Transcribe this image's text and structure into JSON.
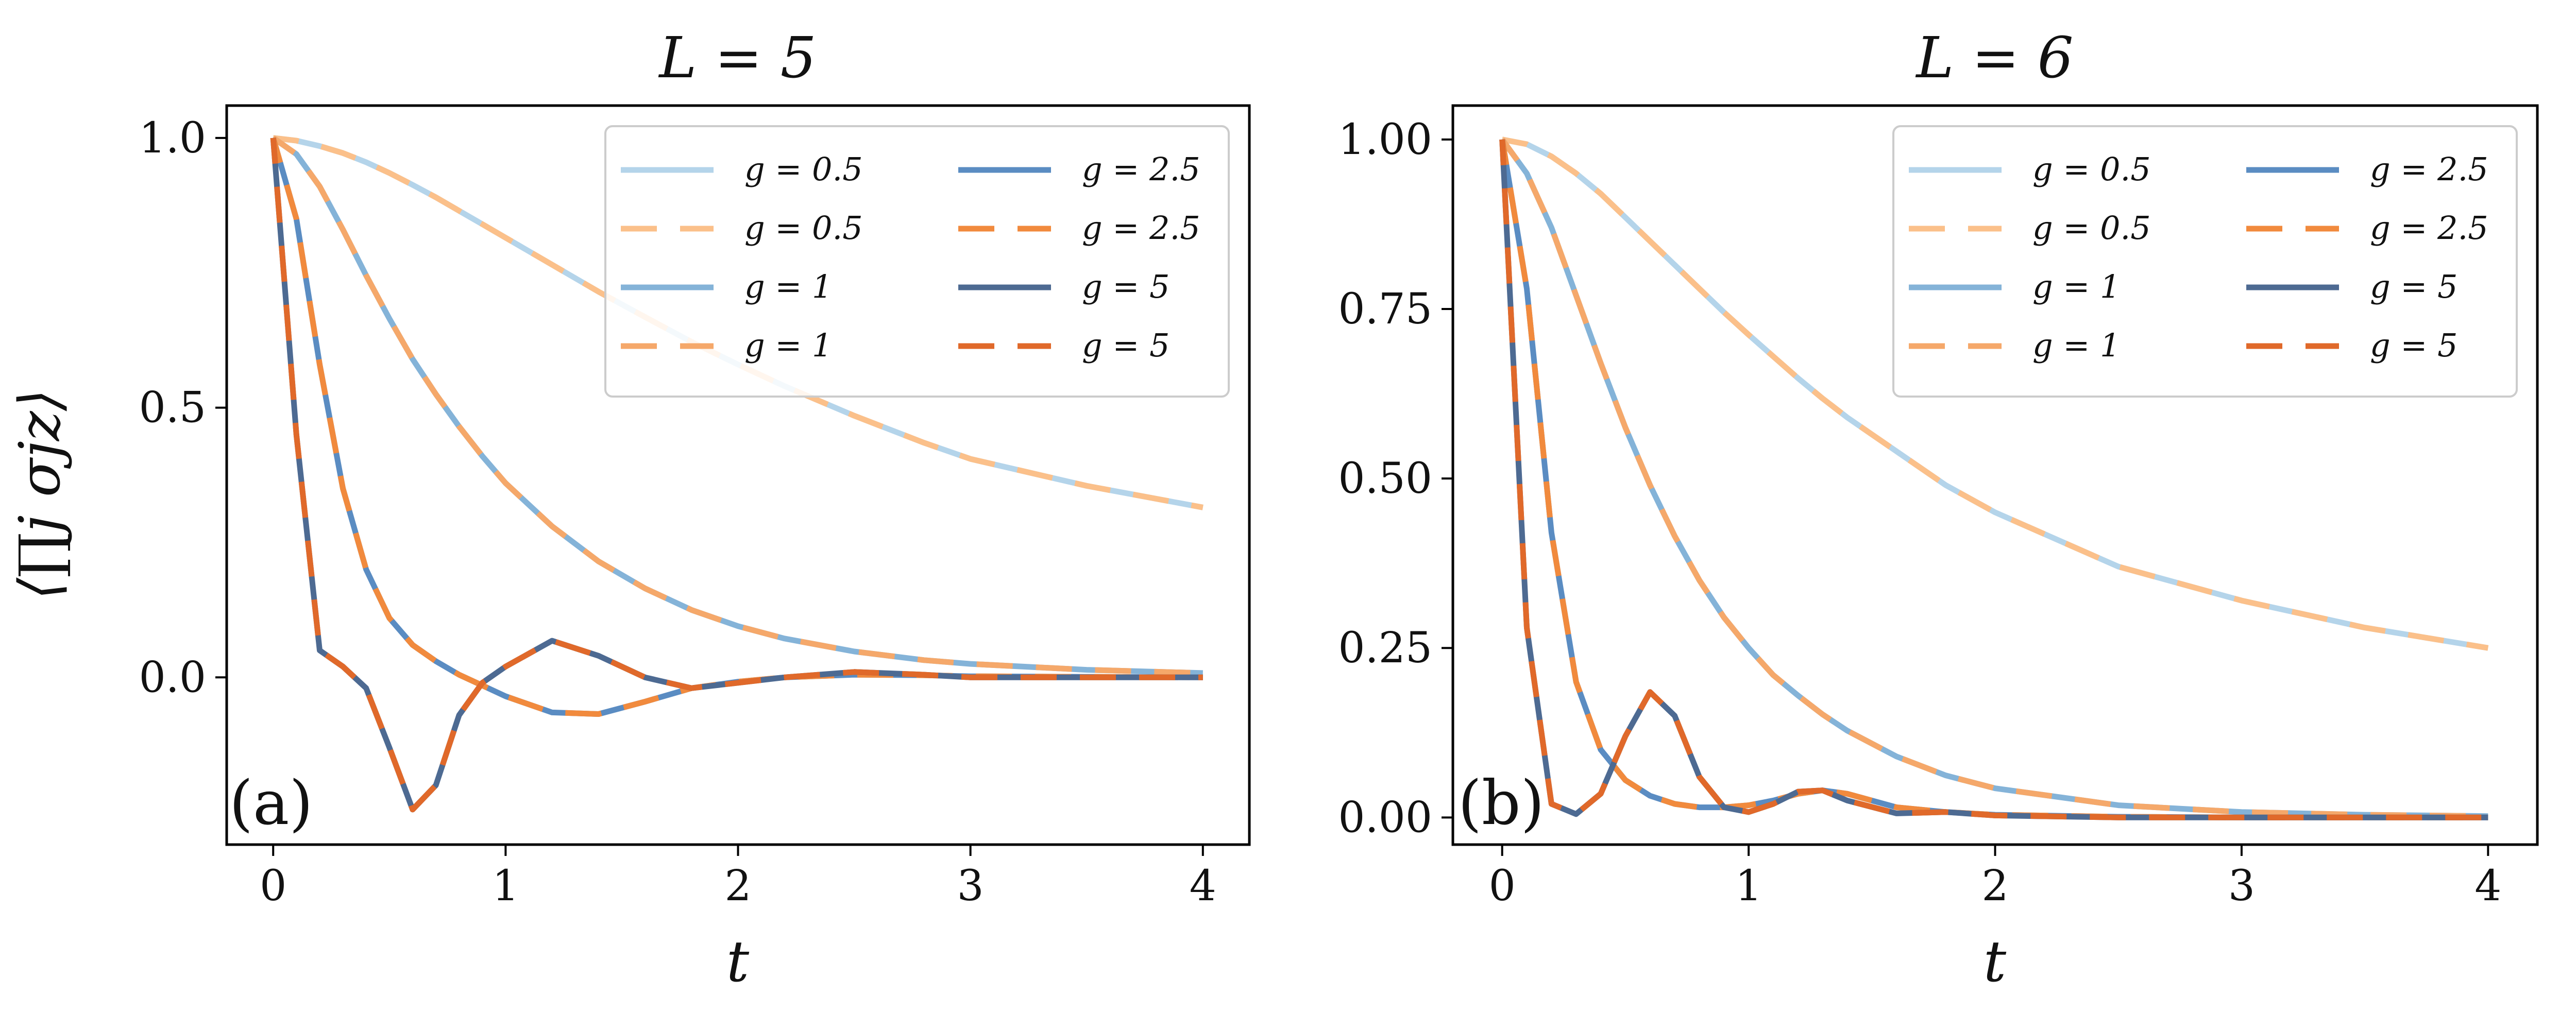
{
  "figure": {
    "ylabel": "⟨∏j σjz⟩",
    "xlabel": "t"
  },
  "colors": {
    "blue_0.5": "#b4d4ea",
    "blue_1": "#84b3d8",
    "blue_2.5": "#5a8cc2",
    "blue_5": "#4d6a92",
    "orange_0.5": "#fbc08a",
    "orange_1": "#f5a86a",
    "orange_2.5": "#f18a3d",
    "orange_5": "#e0692a"
  },
  "chart_data": [
    {
      "type": "line",
      "panel": "(a)",
      "title": "L = 5",
      "xlabel": "t",
      "ylabel": "⟨∏j σjz⟩",
      "xlim": [
        -0.2,
        4.2
      ],
      "ylim": [
        -0.31,
        1.06
      ],
      "xticks": [
        0,
        1,
        2,
        3,
        4
      ],
      "xtick_labels": [
        "0",
        "1",
        "2",
        "3",
        "4"
      ],
      "yticks": [
        0.0,
        0.5,
        1.0
      ],
      "ytick_labels": [
        "0.0",
        "0.5",
        "1.0"
      ],
      "legend": {
        "placement": "top-right",
        "columns": 2,
        "entries": [
          "g = 0.5",
          "g = 0.5",
          "g = 1",
          "g = 1",
          "g = 2.5",
          "g = 2.5",
          "g = 5",
          "g = 5"
        ]
      },
      "x": [
        0,
        0.1,
        0.2,
        0.3,
        0.4,
        0.5,
        0.6,
        0.7,
        0.8,
        0.9,
        1.0,
        1.2,
        1.4,
        1.6,
        1.8,
        2.0,
        2.2,
        2.5,
        2.8,
        3.0,
        3.5,
        4.0
      ],
      "series": [
        {
          "name": "g = 0.5",
          "style": "solid",
          "color": "blue_0.5",
          "values": [
            1.0,
            0.995,
            0.985,
            0.972,
            0.955,
            0.935,
            0.913,
            0.89,
            0.865,
            0.84,
            0.815,
            0.765,
            0.715,
            0.668,
            0.622,
            0.58,
            0.54,
            0.485,
            0.435,
            0.405,
            0.355,
            0.315
          ]
        },
        {
          "name": "g = 0.5",
          "style": "dashed",
          "color": "orange_0.5",
          "values": [
            1.0,
            0.995,
            0.985,
            0.972,
            0.955,
            0.935,
            0.913,
            0.89,
            0.865,
            0.84,
            0.815,
            0.765,
            0.715,
            0.668,
            0.622,
            0.58,
            0.54,
            0.485,
            0.435,
            0.405,
            0.355,
            0.315
          ]
        },
        {
          "name": "g = 1",
          "style": "solid",
          "color": "blue_1",
          "values": [
            1.0,
            0.97,
            0.91,
            0.83,
            0.745,
            0.665,
            0.59,
            0.525,
            0.465,
            0.41,
            0.36,
            0.28,
            0.215,
            0.165,
            0.125,
            0.095,
            0.072,
            0.048,
            0.032,
            0.025,
            0.014,
            0.008
          ]
        },
        {
          "name": "g = 1",
          "style": "dashed",
          "color": "orange_1",
          "values": [
            1.0,
            0.97,
            0.91,
            0.83,
            0.745,
            0.665,
            0.59,
            0.525,
            0.465,
            0.41,
            0.36,
            0.28,
            0.215,
            0.165,
            0.125,
            0.095,
            0.072,
            0.048,
            0.032,
            0.025,
            0.014,
            0.008
          ]
        },
        {
          "name": "g = 2.5",
          "style": "solid",
          "color": "blue_2.5",
          "values": [
            1.0,
            0.85,
            0.58,
            0.35,
            0.2,
            0.11,
            0.06,
            0.03,
            0.005,
            -0.015,
            -0.035,
            -0.065,
            -0.068,
            -0.045,
            -0.02,
            -0.008,
            0.0,
            0.005,
            0.004,
            0.002,
            0.001,
            0.0
          ]
        },
        {
          "name": "g = 2.5",
          "style": "dashed",
          "color": "orange_2.5",
          "values": [
            1.0,
            0.85,
            0.58,
            0.35,
            0.2,
            0.11,
            0.06,
            0.03,
            0.005,
            -0.015,
            -0.035,
            -0.065,
            -0.068,
            -0.045,
            -0.02,
            -0.008,
            0.0,
            0.005,
            0.004,
            0.002,
            0.001,
            0.0
          ]
        },
        {
          "name": "g = 5",
          "style": "solid",
          "color": "blue_5",
          "values": [
            1.0,
            0.45,
            0.05,
            0.02,
            -0.02,
            -0.13,
            -0.245,
            -0.2,
            -0.07,
            -0.01,
            0.02,
            0.068,
            0.04,
            0.0,
            -0.02,
            -0.01,
            0.0,
            0.01,
            0.005,
            0.0,
            0.0,
            0.0
          ]
        },
        {
          "name": "g = 5",
          "style": "dashed",
          "color": "orange_5",
          "values": [
            1.0,
            0.45,
            0.05,
            0.02,
            -0.02,
            -0.13,
            -0.245,
            -0.2,
            -0.07,
            -0.01,
            0.02,
            0.068,
            0.04,
            0.0,
            -0.02,
            -0.01,
            0.0,
            0.01,
            0.005,
            0.0,
            0.0,
            0.0
          ]
        }
      ]
    },
    {
      "type": "line",
      "panel": "(b)",
      "title": "L = 6",
      "xlabel": "t",
      "ylabel": "",
      "xlim": [
        -0.2,
        4.2
      ],
      "ylim": [
        -0.04,
        1.05
      ],
      "xticks": [
        0,
        1,
        2,
        3,
        4
      ],
      "xtick_labels": [
        "0",
        "1",
        "2",
        "3",
        "4"
      ],
      "yticks": [
        0.0,
        0.25,
        0.5,
        0.75,
        1.0
      ],
      "ytick_labels": [
        "0.00",
        "0.25",
        "0.50",
        "0.75",
        "1.00"
      ],
      "legend": {
        "placement": "top-right",
        "columns": 2,
        "entries": [
          "g = 0.5",
          "g = 0.5",
          "g = 1",
          "g = 1",
          "g = 2.5",
          "g = 2.5",
          "g = 5",
          "g = 5"
        ]
      },
      "x": [
        0,
        0.1,
        0.2,
        0.3,
        0.4,
        0.5,
        0.6,
        0.7,
        0.8,
        0.9,
        1.0,
        1.1,
        1.2,
        1.3,
        1.4,
        1.6,
        1.8,
        2.0,
        2.5,
        3.0,
        3.5,
        4.0
      ],
      "series": [
        {
          "name": "g = 0.5",
          "style": "solid",
          "color": "blue_0.5",
          "values": [
            1.0,
            0.993,
            0.975,
            0.95,
            0.92,
            0.885,
            0.85,
            0.815,
            0.78,
            0.745,
            0.712,
            0.68,
            0.648,
            0.618,
            0.59,
            0.54,
            0.49,
            0.45,
            0.37,
            0.32,
            0.28,
            0.25
          ]
        },
        {
          "name": "g = 0.5",
          "style": "dashed",
          "color": "orange_0.5",
          "values": [
            1.0,
            0.993,
            0.975,
            0.95,
            0.92,
            0.885,
            0.85,
            0.815,
            0.78,
            0.745,
            0.712,
            0.68,
            0.648,
            0.618,
            0.59,
            0.54,
            0.49,
            0.45,
            0.37,
            0.32,
            0.28,
            0.25
          ]
        },
        {
          "name": "g = 1",
          "style": "solid",
          "color": "blue_1",
          "values": [
            1.0,
            0.95,
            0.87,
            0.77,
            0.67,
            0.575,
            0.49,
            0.415,
            0.35,
            0.295,
            0.25,
            0.21,
            0.18,
            0.152,
            0.128,
            0.09,
            0.062,
            0.043,
            0.018,
            0.008,
            0.004,
            0.002
          ]
        },
        {
          "name": "g = 1",
          "style": "dashed",
          "color": "orange_1",
          "values": [
            1.0,
            0.95,
            0.87,
            0.77,
            0.67,
            0.575,
            0.49,
            0.415,
            0.35,
            0.295,
            0.25,
            0.21,
            0.18,
            0.152,
            0.128,
            0.09,
            0.062,
            0.043,
            0.018,
            0.008,
            0.004,
            0.002
          ]
        },
        {
          "name": "g = 2.5",
          "style": "solid",
          "color": "blue_2.5",
          "values": [
            1.0,
            0.78,
            0.42,
            0.2,
            0.1,
            0.055,
            0.032,
            0.02,
            0.015,
            0.015,
            0.018,
            0.025,
            0.035,
            0.04,
            0.035,
            0.015,
            0.008,
            0.004,
            0.001,
            0.0,
            0.0,
            0.0
          ]
        },
        {
          "name": "g = 2.5",
          "style": "dashed",
          "color": "orange_2.5",
          "values": [
            1.0,
            0.78,
            0.42,
            0.2,
            0.1,
            0.055,
            0.032,
            0.02,
            0.015,
            0.015,
            0.018,
            0.025,
            0.035,
            0.04,
            0.035,
            0.015,
            0.008,
            0.004,
            0.001,
            0.0,
            0.0,
            0.0
          ]
        },
        {
          "name": "g = 5",
          "style": "solid",
          "color": "blue_5",
          "values": [
            1.0,
            0.28,
            0.02,
            0.005,
            0.035,
            0.12,
            0.185,
            0.15,
            0.06,
            0.015,
            0.008,
            0.02,
            0.038,
            0.04,
            0.025,
            0.006,
            0.008,
            0.003,
            0.0,
            0.0,
            0.0,
            0.0
          ]
        },
        {
          "name": "g = 5",
          "style": "dashed",
          "color": "orange_5",
          "values": [
            1.0,
            0.28,
            0.02,
            0.005,
            0.035,
            0.12,
            0.185,
            0.15,
            0.06,
            0.015,
            0.008,
            0.02,
            0.038,
            0.04,
            0.025,
            0.006,
            0.008,
            0.003,
            0.0,
            0.0,
            0.0,
            0.0
          ]
        }
      ]
    }
  ]
}
